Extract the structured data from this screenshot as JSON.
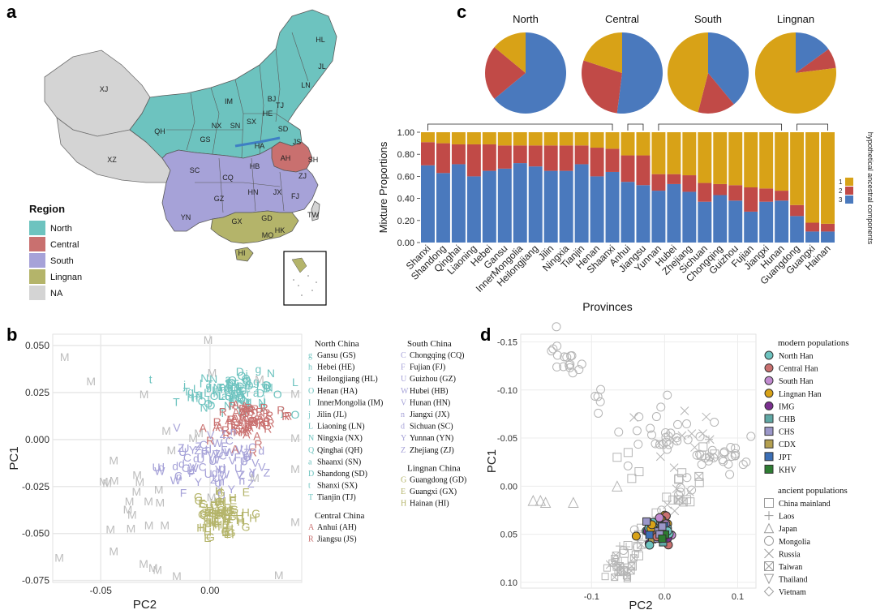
{
  "panel_labels": {
    "a": "a",
    "b": "b",
    "c": "c",
    "d": "d"
  },
  "colors": {
    "north": "#6dc3bf",
    "central": "#c9706f",
    "south": "#a6a2d8",
    "lingnan": "#b4b46a",
    "na": "#d4d4d4",
    "c1": "#d8a217",
    "c2": "#c14a47",
    "c3": "#4a79bd",
    "grey": "#bdbdbd"
  },
  "map": {
    "legend_title": "Region",
    "legend": [
      {
        "label": "North",
        "color": "#6dc3bf"
      },
      {
        "label": "Central",
        "color": "#c9706f"
      },
      {
        "label": "South",
        "color": "#a6a2d8"
      },
      {
        "label": "Lingnan",
        "color": "#b4b46a"
      },
      {
        "label": "NA",
        "color": "#d4d4d4"
      }
    ],
    "province_labels": [
      "XJ",
      "XZ",
      "QH",
      "GS",
      "IM",
      "NX",
      "SN",
      "SX",
      "HE",
      "BJ",
      "TJ",
      "HL",
      "JL",
      "LN",
      "SD",
      "HA",
      "JS",
      "AH",
      "SH",
      "HB",
      "SC",
      "CQ",
      "GZ",
      "HN",
      "JX",
      "ZJ",
      "FJ",
      "TW",
      "YN",
      "GX",
      "GD",
      "HK",
      "MO",
      "HI"
    ]
  },
  "chart_data": [
    {
      "type": "pie",
      "panel": "c-top",
      "charts": [
        {
          "title": "North",
          "slices": [
            {
              "component": "3",
              "value": 0.64
            },
            {
              "component": "2",
              "value": 0.22
            },
            {
              "component": "1",
              "value": 0.14
            }
          ]
        },
        {
          "title": "Central",
          "slices": [
            {
              "component": "3",
              "value": 0.52
            },
            {
              "component": "2",
              "value": 0.28
            },
            {
              "component": "1",
              "value": 0.2
            }
          ]
        },
        {
          "title": "South",
          "slices": [
            {
              "component": "3",
              "value": 0.39
            },
            {
              "component": "2",
              "value": 0.15
            },
            {
              "component": "1",
              "value": 0.46
            }
          ]
        },
        {
          "title": "Lingnan",
          "slices": [
            {
              "component": "3",
              "value": 0.15
            },
            {
              "component": "2",
              "value": 0.08
            },
            {
              "component": "1",
              "value": 0.77
            }
          ]
        }
      ]
    },
    {
      "type": "bar",
      "panel": "c-bottom",
      "stacked": true,
      "ylabel": "Mixture Proportions",
      "xlabel": "Provinces",
      "ylim": [
        0,
        1
      ],
      "yticks": [
        "0.00",
        "0.20",
        "0.40",
        "0.60",
        "0.80",
        "1.00"
      ],
      "legend_title": "hypothetical ancestral components",
      "legend": [
        "1",
        "2",
        "3"
      ],
      "categories": [
        "Shanxi",
        "Shandong",
        "Qinghai",
        "Liaoning",
        "Hebei",
        "Gansu",
        "InnerMongolia",
        "Heilongjiang",
        "Jilin",
        "Ningxia",
        "Tianjin",
        "Henan",
        "Shaanxi",
        "Anhui",
        "Jiangsu",
        "Yunnan",
        "Hubei",
        "Zhejiang",
        "Sichuan",
        "Chongqing",
        "Guizhou",
        "Fujian",
        "Jiangxi",
        "Hunan",
        "Guangdong",
        "Guangxi",
        "Hainan"
      ],
      "series": [
        {
          "name": "3",
          "values": [
            0.7,
            0.63,
            0.71,
            0.6,
            0.65,
            0.67,
            0.72,
            0.69,
            0.65,
            0.65,
            0.71,
            0.6,
            0.64,
            0.55,
            0.52,
            0.47,
            0.53,
            0.46,
            0.37,
            0.43,
            0.38,
            0.28,
            0.37,
            0.38,
            0.24,
            0.1,
            0.1
          ]
        },
        {
          "name": "2",
          "values": [
            0.21,
            0.27,
            0.18,
            0.29,
            0.24,
            0.21,
            0.16,
            0.19,
            0.23,
            0.23,
            0.17,
            0.26,
            0.21,
            0.24,
            0.27,
            0.15,
            0.09,
            0.15,
            0.17,
            0.1,
            0.14,
            0.22,
            0.12,
            0.09,
            0.1,
            0.08,
            0.07
          ]
        },
        {
          "name": "1",
          "values": [
            0.09,
            0.1,
            0.11,
            0.11,
            0.11,
            0.12,
            0.12,
            0.12,
            0.12,
            0.12,
            0.12,
            0.14,
            0.15,
            0.21,
            0.21,
            0.38,
            0.38,
            0.39,
            0.46,
            0.47,
            0.48,
            0.5,
            0.51,
            0.53,
            0.66,
            0.82,
            0.83
          ]
        }
      ],
      "bracket_groups": [
        [
          "Shanxi",
          "Shaanxi"
        ],
        [
          "Anhui",
          "Jiangsu"
        ],
        [
          "Yunnan",
          "Hunan"
        ],
        [
          "Guangdong",
          "Hainan"
        ]
      ]
    },
    {
      "type": "scatter",
      "panel": "b",
      "xlabel": "PC2",
      "ylabel": "PC1",
      "xlim": [
        -0.072,
        0.042
      ],
      "ylim": [
        -0.076,
        0.056
      ],
      "xticks": [
        -0.05,
        0.0
      ],
      "yticks": [
        0.05,
        0.025,
        0.0,
        -0.025,
        -0.05,
        -0.075
      ],
      "xtick_labels": [
        "-0.05",
        "0.00"
      ],
      "ytick_labels": [
        "0.050",
        "0.025",
        "0.000",
        "-0.025",
        "-0.050",
        "-0.075"
      ],
      "groups": [
        {
          "name": "North",
          "cx": 0.012,
          "cy": 0.025,
          "sx": 0.016,
          "sy": 0.008,
          "letters": "ghrOIjLNQaDtT",
          "n": 110
        },
        {
          "name": "Central",
          "cx": 0.018,
          "cy": 0.01,
          "sx": 0.016,
          "sy": 0.01,
          "letters": "AR",
          "n": 70
        },
        {
          "name": "South",
          "cx": 0.0,
          "cy": -0.012,
          "sx": 0.02,
          "sy": 0.012,
          "letters": "CFUWVndYZ",
          "n": 80
        },
        {
          "name": "Lingnan",
          "cx": 0.005,
          "cy": -0.04,
          "sx": 0.01,
          "sy": 0.01,
          "letters": "GEH",
          "n": 75
        },
        {
          "name": "Other",
          "cx": 0.0,
          "cy": 0.0,
          "sx": 0.03,
          "sy": 0.04,
          "letters": "M",
          "n": 40
        }
      ],
      "legend_columns": [
        {
          "header": "North China",
          "items": [
            [
              "g",
              "Gansu (GS)"
            ],
            [
              "h",
              "Hebei (HE)"
            ],
            [
              "r",
              "Heilongjiang (HL)"
            ],
            [
              "O",
              "Henan (HA)"
            ],
            [
              "I",
              "InnerMongolia (IM)"
            ],
            [
              "j",
              "Jilin (JL)"
            ],
            [
              "L",
              "Liaoning (LN)"
            ],
            [
              "N",
              "Ningxia (NX)"
            ],
            [
              "Q",
              "Qinghai (QH)"
            ],
            [
              "a",
              "Shaanxi (SN)"
            ],
            [
              "D",
              "Shandong (SD)"
            ],
            [
              "t",
              "Shanxi (SX)"
            ],
            [
              "T",
              "Tianjin (TJ)"
            ]
          ],
          "color": "#6dc3bf",
          "sub": {
            "header": "Central China",
            "items": [
              [
                "A",
                "Anhui (AH)"
              ],
              [
                "R",
                "Jiangsu (JS)"
              ]
            ],
            "color": "#c9706f"
          }
        },
        {
          "header": "South China",
          "items": [
            [
              "C",
              "Chongqing (CQ)"
            ],
            [
              "F",
              "Fujian (FJ)"
            ],
            [
              "U",
              "Guizhou (GZ)"
            ],
            [
              "W",
              "Hubei (HB)"
            ],
            [
              "V",
              "Hunan (HN)"
            ],
            [
              "n",
              "Jiangxi (JX)"
            ],
            [
              "d",
              "Sichuan (SC)"
            ],
            [
              "Y",
              "Yunnan (YN)"
            ],
            [
              "Z",
              "Zhejiang (ZJ)"
            ]
          ],
          "color": "#a6a2d8",
          "sub": {
            "header": "Lingnan China",
            "items": [
              [
                "G",
                "Guangdong (GD)"
              ],
              [
                "E",
                "Guangxi (GX)"
              ],
              [
                "H",
                "Hainan (HI)"
              ]
            ],
            "color": "#b4b46a"
          }
        }
      ]
    },
    {
      "type": "scatter",
      "panel": "d",
      "xlabel": "PC2",
      "ylabel": "PC1",
      "xlim": [
        -0.197,
        0.125
      ],
      "ylim": [
        -0.158,
        0.106
      ],
      "y_reversed": true,
      "xticks": [
        -0.1,
        0.0,
        0.1
      ],
      "yticks": [
        -0.15,
        -0.1,
        -0.05,
        0.0,
        0.05,
        0.1
      ],
      "xtick_labels": [
        "-0.1",
        "0.0",
        "0.1"
      ],
      "ytick_labels": [
        "-0.15",
        "-0.10",
        "-0.05",
        "0.00",
        "0.05",
        "0.10"
      ],
      "legend_modern_title": "modern populations",
      "legend_modern": [
        {
          "label": "North Han",
          "shape": "circle",
          "color": "#6dc3bf"
        },
        {
          "label": "Central Han",
          "shape": "circle",
          "color": "#c9706f"
        },
        {
          "label": "South Han",
          "shape": "circle",
          "color": "#c28bd0"
        },
        {
          "label": "Lingnan Han",
          "shape": "circle",
          "color": "#d8a217"
        },
        {
          "label": "IMG",
          "shape": "circle",
          "color": "#7a2f8f"
        },
        {
          "label": "CHB",
          "shape": "square",
          "color": "#5fa8a5"
        },
        {
          "label": "CHS",
          "shape": "square",
          "color": "#9b97c9"
        },
        {
          "label": "CDX",
          "shape": "square",
          "color": "#b4a050"
        },
        {
          "label": "JPT",
          "shape": "square",
          "color": "#3b6fb6"
        },
        {
          "label": "KHV",
          "shape": "square",
          "color": "#2e7d32"
        }
      ],
      "legend_ancient_title": "ancient populations",
      "legend_ancient": [
        {
          "label": "China mainland",
          "shape": "square"
        },
        {
          "label": "Laos",
          "shape": "plus"
        },
        {
          "label": "Japan",
          "shape": "triangle"
        },
        {
          "label": "Mongolia",
          "shape": "circle"
        },
        {
          "label": "Russia",
          "shape": "cross"
        },
        {
          "label": "Taiwan",
          "shape": "boxx"
        },
        {
          "label": "Thailand",
          "shape": "tridown"
        },
        {
          "label": "Vietnam",
          "shape": "diamond"
        }
      ]
    }
  ]
}
